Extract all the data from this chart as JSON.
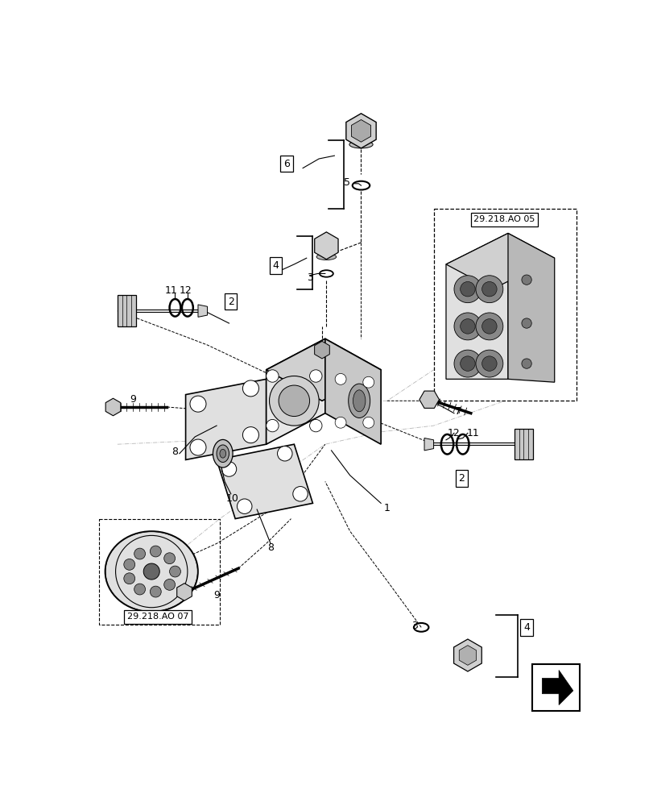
{
  "bg_color": "#ffffff",
  "line_color": "#000000",
  "fig_width": 8.12,
  "fig_height": 10.0,
  "dpi": 100
}
